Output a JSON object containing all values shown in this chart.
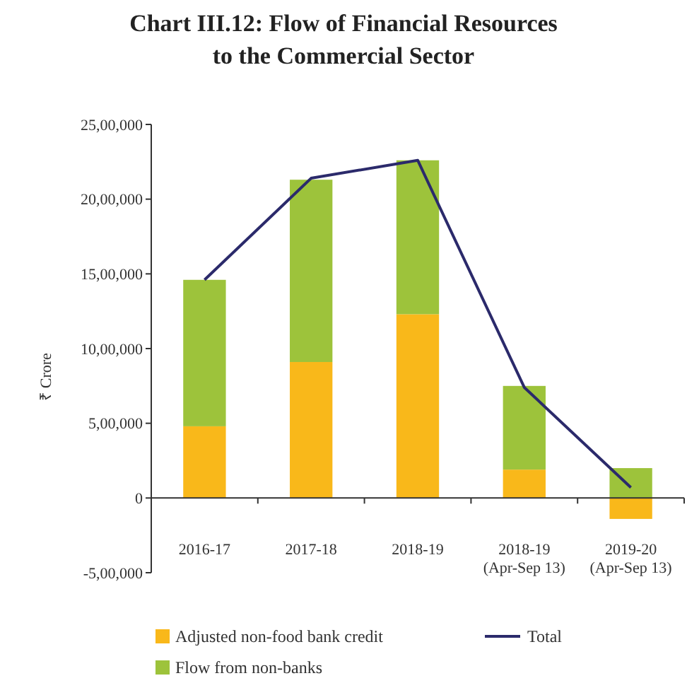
{
  "chart_data": {
    "type": "bar",
    "stacked": true,
    "title": "Chart III.12: Flow of Financial Resources to the Commercial Sector",
    "ylabel": "₹ Crore",
    "categories": [
      "2016-17",
      "2017-18",
      "2018-19",
      "2018-19 (Apr-Sep 13)",
      "2019-20 (Apr-Sep 13)"
    ],
    "series": [
      {
        "name": "Adjusted non-food bank credit",
        "color": "#f9b81a",
        "values": [
          480000,
          910000,
          1230000,
          190000,
          -140000
        ]
      },
      {
        "name": "Flow from non-banks",
        "color": "#9dc33b",
        "values": [
          980000,
          1220000,
          1030000,
          560000,
          200000
        ]
      },
      {
        "name": "Total",
        "type": "line",
        "color": "#2b2a6b",
        "values": [
          1460000,
          2140000,
          2260000,
          740000,
          70000
        ]
      }
    ],
    "ylim": [
      -500000,
      2500000
    ],
    "yticks": [
      {
        "value": -500000,
        "label": "-5,00,000"
      },
      {
        "value": 0,
        "label": "0"
      },
      {
        "value": 500000,
        "label": "5,00,000"
      },
      {
        "value": 1000000,
        "label": "10,00,000"
      },
      {
        "value": 1500000,
        "label": "15,00,000"
      },
      {
        "value": 2000000,
        "label": "20,00,000"
      },
      {
        "value": 2500000,
        "label": "25,00,000"
      }
    ],
    "legend": "bottom"
  }
}
